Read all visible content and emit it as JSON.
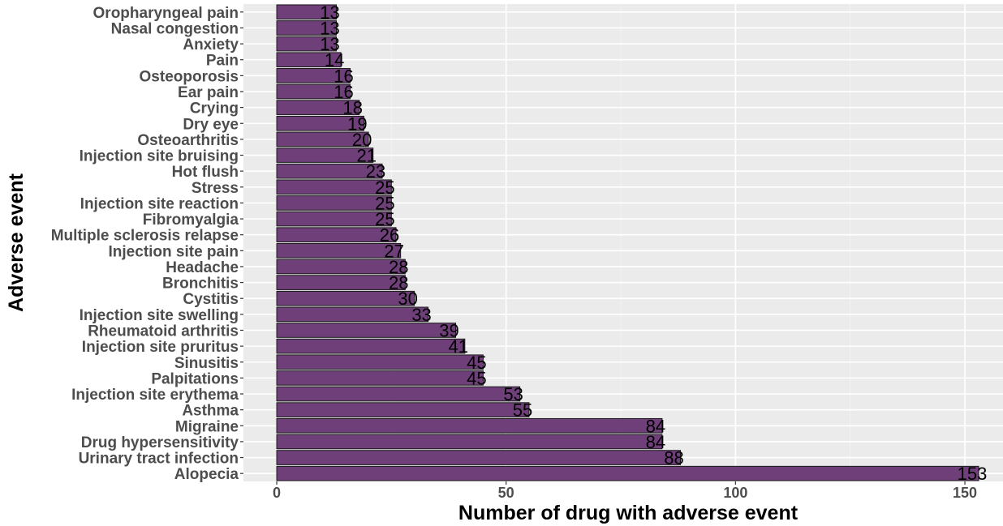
{
  "chart_data": {
    "type": "bar",
    "orientation": "horizontal",
    "xlabel": "Number of drug with adverse event",
    "ylabel": "Adverse event",
    "xlim": [
      0,
      157
    ],
    "xticks": [
      0,
      50,
      100,
      150
    ],
    "grid": true,
    "bar_color": "#6f3f7a",
    "bar_border_color": "#1a1a1a",
    "panel_color": "#ebebeb",
    "categories": [
      "Oropharyngeal pain",
      "Nasal congestion",
      "Anxiety",
      "Pain",
      "Osteoporosis",
      "Ear pain",
      "Crying",
      "Dry eye",
      "Osteoarthritis",
      "Injection site bruising",
      "Hot flush",
      "Stress",
      "Injection site reaction",
      "Fibromyalgia",
      "Multiple sclerosis relapse",
      "Injection site pain",
      "Headache",
      "Bronchitis",
      "Cystitis",
      "Injection site swelling",
      "Rheumatoid arthritis",
      "Injection site pruritus",
      "Sinusitis",
      "Palpitations",
      "Injection site erythema",
      "Asthma",
      "Migraine",
      "Drug hypersensitivity",
      "Urinary tract infection",
      "Alopecia"
    ],
    "values": [
      13,
      13,
      13,
      14,
      16,
      16,
      18,
      19,
      20,
      21,
      23,
      25,
      25,
      25,
      26,
      27,
      28,
      28,
      30,
      33,
      39,
      41,
      45,
      45,
      53,
      55,
      84,
      84,
      88,
      153
    ]
  }
}
